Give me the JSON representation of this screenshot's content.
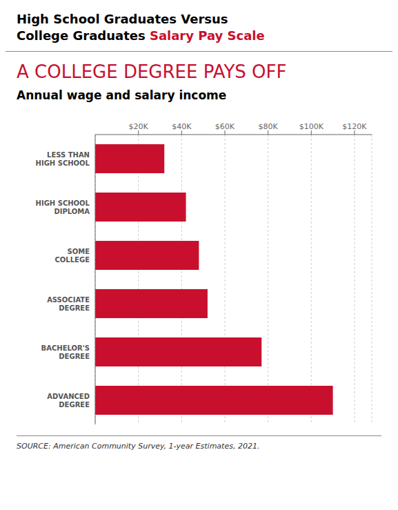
{
  "chart_data": {
    "type": "bar",
    "orientation": "horizontal",
    "title": [
      "High School Graduates Versus",
      "College Graduates",
      "Salary Pay Scale"
    ],
    "subtitle": [
      "A COLLEGE DEGREE PAYS OFF",
      "Annual wage and salary income"
    ],
    "annotations": [
      "SOURCE: American Community Survey, 1-year Estimates, 2021."
    ],
    "categories": [
      "LESS THAN\nHIGH SCHOOL",
      "HIGH SCHOOL\nDIPLOMA",
      "SOME\nCOLLEGE",
      "ASSOCIATE\nDEGREE",
      "BACHELOR'S\nDEGREE",
      "ADVANCED\nDEGREE"
    ],
    "values": [
      32000,
      42000,
      48000,
      52000,
      77000,
      110000
    ],
    "color": "#C8102E",
    "xlim": [
      0,
      128000
    ],
    "xticks": [
      {
        "value": 20000,
        "label": "$20K"
      },
      {
        "value": 40000,
        "label": "$40K"
      },
      {
        "value": 60000,
        "label": "$60K"
      },
      {
        "value": 80000,
        "label": "$80K"
      },
      {
        "value": 100000,
        "label": "$100K"
      },
      {
        "value": 120000,
        "label": "$120K"
      }
    ],
    "grid": true
  }
}
